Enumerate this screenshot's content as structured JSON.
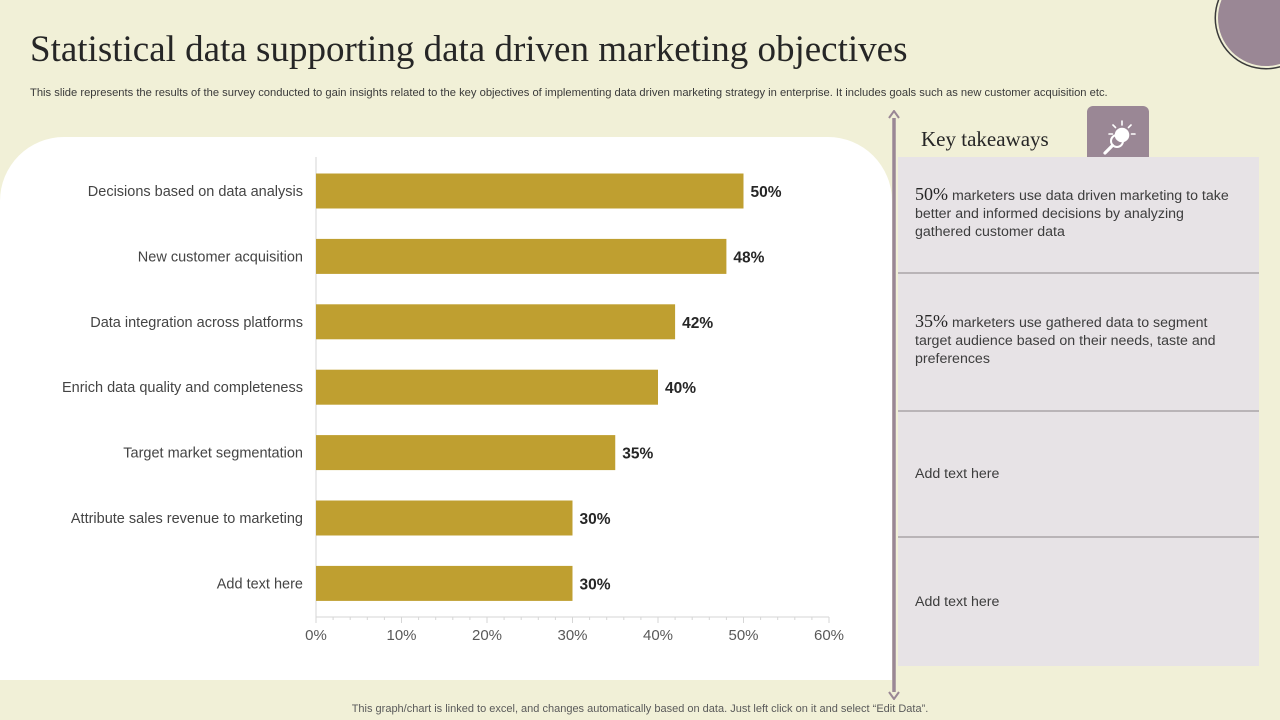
{
  "slide": {
    "title": "Statistical data supporting data driven marketing objectives",
    "subtitle": "This slide represents the results of the survey conducted to gain insights related to the key objectives of implementing data driven marketing strategy in enterprise. It includes goals such as new customer acquisition etc.",
    "footer": "This graph/chart is linked to excel, and changes automatically based on data. Just left click on it and select “Edit Data”."
  },
  "chart_data": {
    "type": "bar",
    "orientation": "horizontal",
    "categories": [
      "Decisions based on data analysis",
      "New customer acquisition",
      "Data integration across platforms",
      "Enrich data quality and completeness",
      "Target market segmentation",
      "Attribute sales revenue to marketing",
      "Add text here"
    ],
    "values": [
      50,
      48,
      42,
      40,
      35,
      30,
      30
    ],
    "data_labels": [
      "50%",
      "48%",
      "42%",
      "40%",
      "35%",
      "30%",
      "30%"
    ],
    "xlim": [
      0,
      60
    ],
    "x_ticks": [
      0,
      10,
      20,
      30,
      40,
      50,
      60
    ],
    "x_tick_labels": [
      "0%",
      "10%",
      "20%",
      "30%",
      "40%",
      "50%",
      "60%"
    ],
    "bar_color": "#bf9f30",
    "grid": false,
    "legend": "none"
  },
  "takeaways": {
    "title": "Key takeaways",
    "icon": "lightbulb-magnifier-icon",
    "accent_color": "#9a8795",
    "items": [
      {
        "pct": "50%",
        "text": " marketers use data driven marketing to take better and informed decisions by analyzing gathered customer data"
      },
      {
        "pct": "35%",
        "text": " marketers use gathered data to segment target audience based on their needs, taste and preferences"
      },
      {
        "pct": "",
        "text": "Add text here"
      },
      {
        "pct": "",
        "text": "Add text here"
      }
    ]
  }
}
